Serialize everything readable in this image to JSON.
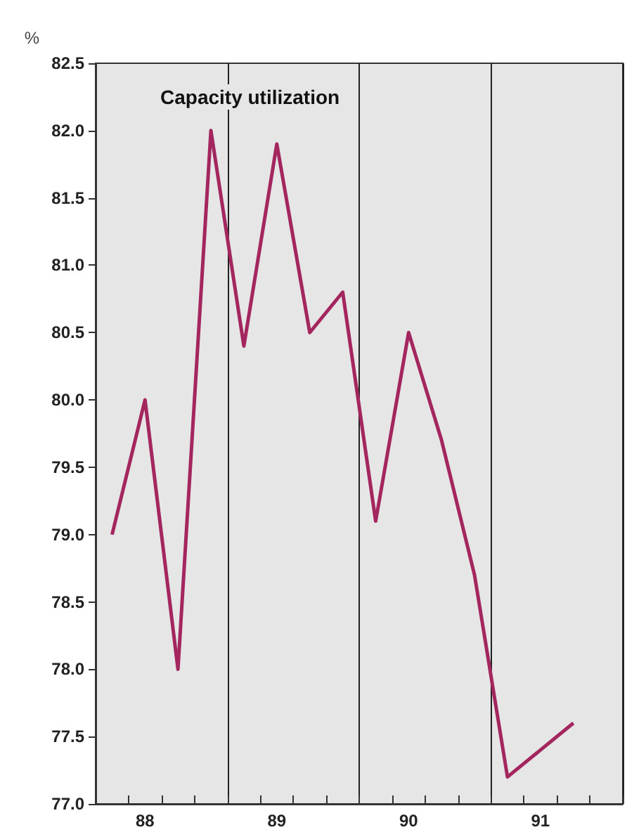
{
  "chart_data": {
    "type": "line",
    "title": "Capacity utilization",
    "ylabel": "%",
    "categories": [
      null,
      "88",
      null,
      null,
      null,
      "89",
      null,
      null,
      null,
      "90",
      null,
      null,
      null,
      "91",
      null,
      null
    ],
    "series": [
      {
        "color": "#a3265e",
        "values": [
          79.0,
          80.0,
          78.0,
          82.0,
          80.4,
          81.9,
          80.5,
          80.8,
          79.1,
          80.5,
          79.7,
          78.7,
          77.2,
          77.4,
          77.6,
          null
        ]
      }
    ],
    "ylim": [
      77,
      82.5
    ],
    "yticks": [
      {
        "value": 77,
        "label": "77.0"
      },
      {
        "value": 77.5,
        "label": "77.5"
      },
      {
        "value": 78,
        "label": "78.0"
      },
      {
        "value": 78.5,
        "label": "78.5"
      },
      {
        "value": 79,
        "label": "79.0"
      },
      {
        "value": 79.5,
        "label": "79.5"
      },
      {
        "value": 80,
        "label": "80.0"
      },
      {
        "value": 80.5,
        "label": "80.5"
      },
      {
        "value": 81,
        "label": "81.0"
      },
      {
        "value": 81.5,
        "label": "81.5"
      },
      {
        "value": 82,
        "label": "82.0"
      },
      {
        "value": 82.5,
        "label": "82.5"
      }
    ],
    "grid": "x",
    "marker": "none",
    "line_style": "solid"
  }
}
